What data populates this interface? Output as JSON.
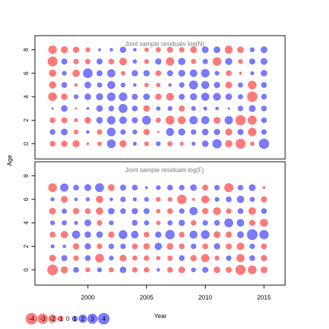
{
  "chart_data": [
    {
      "type": "scatter",
      "title": "Joint sample residuals log(N)",
      "xlabel": "Year",
      "ylabel": "Age",
      "xlim": [
        1995.5,
        2016.8
      ],
      "ylim": [
        -1.3,
        9.2
      ],
      "x_ticks": [
        2000,
        2005,
        2010,
        2015
      ],
      "y_ticks": [
        0,
        2,
        4,
        6,
        8
      ],
      "years": [
        1997,
        1998,
        1999,
        2000,
        2001,
        2002,
        2003,
        2004,
        2005,
        2006,
        2007,
        2008,
        2009,
        2010,
        2011,
        2012,
        2013,
        2014,
        2015
      ],
      "ages": [
        0,
        1,
        2,
        3,
        4,
        5,
        6,
        7,
        8
      ],
      "residuals": [
        [
          -0.9,
          -1.1,
          -1.4,
          -0.2,
          -0.5,
          2.2,
          -1.4,
          0.4,
          -0.6,
          0.6,
          -0.7,
          -0.4,
          0.4,
          1.2,
          2.5,
          -1.5,
          -2.9,
          -0.5,
          3.1
        ],
        [
          0.9,
          1.3,
          -0.6,
          0.3,
          -0.8,
          2.2,
          0.8,
          0.6,
          -1.1,
          -0.1,
          1.8,
          1.4,
          0.8,
          1.2,
          1.1,
          -1.4,
          1.0,
          -2.1,
          0.8
        ],
        [
          -0.9,
          -1.0,
          -0.4,
          -1.2,
          1.2,
          2.1,
          1.6,
          1.0,
          2.3,
          -0.7,
          -2.3,
          -1.7,
          2.0,
          1.9,
          -1.3,
          2.0,
          -3.1,
          -2.4,
          0.9
        ],
        [
          0.1,
          1.2,
          -0.1,
          0.2,
          1.2,
          0.9,
          2.3,
          0.9,
          -1.2,
          0.5,
          0.6,
          -1.0,
          0.6,
          0.4,
          0.3,
          0.1,
          0.8,
          1.3,
          0.9
        ],
        [
          -2.2,
          -1.2,
          0.6,
          1.2,
          1.4,
          2.1,
          2.1,
          1.0,
          1.2,
          -1.1,
          -1.7,
          1.0,
          1.4,
          1.9,
          1.7,
          1.2,
          0.7,
          -3.2,
          0.9
        ],
        [
          -1.5,
          0.9,
          -0.3,
          1.3,
          0.7,
          1.8,
          0.6,
          0.3,
          -0.5,
          -0.5,
          0.3,
          0.8,
          2.3,
          1.8,
          1.1,
          -1.3,
          0.7,
          -2.2,
          0.9
        ],
        [
          -1.5,
          0.6,
          -1.5,
          2.7,
          1.0,
          1.9,
          -0.5,
          1.1,
          1.1,
          -0.9,
          1.0,
          1.3,
          1.6,
          2.1,
          0.6,
          -0.9,
          -0.2,
          0.4,
          1.2
        ],
        [
          -2.9,
          1.0,
          -0.8,
          -0.8,
          1.0,
          -0.9,
          -1.6,
          0.5,
          -0.6,
          1.1,
          -2.0,
          1.5,
          -0.7,
          0.8,
          -2.1,
          1.4,
          -0.6,
          1.0,
          1.3
        ],
        [
          -2.1,
          -1.4,
          -1.1,
          -0.6,
          0.2,
          0.3,
          1.1,
          0.3,
          -0.5,
          -0.7,
          -1.0,
          -0.8,
          -1.2,
          1.3,
          1.3,
          -1.8,
          -1.2,
          0.6,
          1.3
        ]
      ]
    },
    {
      "type": "scatter",
      "title": "Joint sample residuals log(F)",
      "xlabel": "Year",
      "ylabel": "Age",
      "xlim": [
        1995.5,
        2016.8
      ],
      "ylim": [
        -1.3,
        9.2
      ],
      "x_ticks": [
        2000,
        2005,
        2010,
        2015
      ],
      "y_ticks": [
        0,
        2,
        4,
        6,
        8
      ],
      "years": [
        1997,
        1998,
        1999,
        2000,
        2001,
        2002,
        2003,
        2004,
        2005,
        2006,
        2007,
        2008,
        2009,
        2010,
        2011,
        2012,
        2013,
        2014,
        2015
      ],
      "ages": [
        0,
        1,
        2,
        3,
        4,
        5,
        6,
        7
      ],
      "residuals": [
        [
          -3.3,
          -1.4,
          0.9,
          -0.6,
          0.6,
          -0.7,
          1.2,
          -0.8,
          -0.8,
          0.3,
          -0.9,
          -1.2,
          0.6,
          1.0,
          -1.2,
          -1.0,
          -3.0,
          -2.2,
          -1.3
        ],
        [
          -1.3,
          1.0,
          -0.8,
          0.9,
          -2.2,
          0.6,
          -1.3,
          -0.7,
          -0.8,
          -0.5,
          -0.8,
          0.9,
          -1.1,
          -1.9,
          -0.6,
          0.8,
          -1.8,
          0.9,
          -1.1
        ],
        [
          0.4,
          0.3,
          -1.1,
          1.1,
          -0.8,
          0.8,
          0.8,
          -0.9,
          -1.1,
          1.5,
          -1.2,
          -0.9,
          0.8,
          -0.9,
          1.1,
          -1.0,
          -1.6,
          0.8,
          -0.9
        ],
        [
          -1.0,
          -1.5,
          1.9,
          1.2,
          1.2,
          -1.1,
          2.2,
          1.6,
          -0.9,
          1.1,
          2.6,
          -0.9,
          1.8,
          2.2,
          -1.3,
          -1.1,
          1.3,
          3.4,
          2.5
        ],
        [
          0.6,
          0.7,
          0.4,
          1.3,
          -0.8,
          0.6,
          0.0,
          0.9,
          0.7,
          -0.5,
          0.7,
          1.1,
          -0.8,
          0.8,
          0.9,
          2.3,
          1.6,
          -1.0,
          -1.8
        ],
        [
          -1.3,
          0.7,
          -1.1,
          -0.9,
          -1.5,
          1.2,
          0.9,
          1.1,
          1.0,
          -0.5,
          -0.9,
          0.8,
          1.9,
          -1.1,
          -1.7,
          -0.8,
          0.9,
          -1.6,
          0.9
        ],
        [
          0.4,
          -1.3,
          0.3,
          0.4,
          -1.5,
          0.3,
          0.8,
          0.4,
          0.6,
          -0.6,
          -0.6,
          -2.6,
          -0.2,
          -1.8,
          0.6,
          0.9,
          1.5,
          0.7,
          -1.1
        ],
        [
          -2.2,
          2.0,
          0.9,
          1.3,
          2.3,
          -1.3,
          1.0,
          0.9,
          0.2,
          0.6,
          0.9,
          0.8,
          1.2,
          -1.0,
          0.8,
          -2.4,
          0.8,
          1.3,
          -0.2
        ]
      ]
    }
  ],
  "legend": {
    "items": [
      {
        "label": "-4",
        "value": -4
      },
      {
        "label": "-3",
        "value": -3
      },
      {
        "label": "-2",
        "value": -2
      },
      {
        "label": "-1",
        "value": -1
      },
      {
        "label": "0",
        "value": 0
      },
      {
        "label": "1",
        "value": 1
      },
      {
        "label": "2",
        "value": 2
      },
      {
        "label": "3",
        "value": 3
      },
      {
        "label": "4",
        "value": 4
      }
    ]
  },
  "colors": {
    "negative": "#ff5a5a",
    "positive": "#5a5aff",
    "frame": "#000000",
    "title": "#7a7a7a"
  }
}
